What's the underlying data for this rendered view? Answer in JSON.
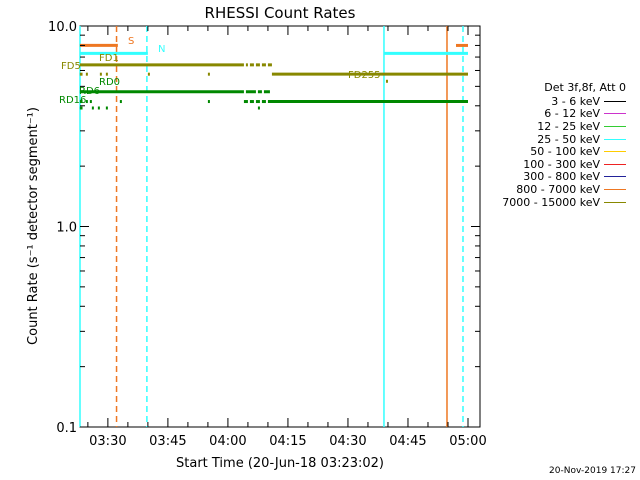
{
  "chart_data": {
    "type": "line",
    "title": "RHESSI Count Rates",
    "xlabel": "Start Time (20-Jun-18 03:23:02)",
    "ylabel": "Count Rate (s⁻¹ detector segment⁻¹)",
    "yscale": "log",
    "ylim": [
      0.1,
      10.0
    ],
    "xlim": [
      "03:23:02",
      "05:03:00"
    ],
    "x_ticks": [
      "03:30",
      "03:45",
      "04:00",
      "04:15",
      "04:30",
      "04:45",
      "05:00"
    ],
    "y_ticks": [
      "0.1",
      "1.0",
      "10.0"
    ],
    "legend": {
      "header": "Det 3f,8f, Att 0",
      "placement": "right",
      "entries": [
        {
          "label": "3 - 6 keV",
          "color": "#000000"
        },
        {
          "label": "6 - 12 keV",
          "color": "#cc33cc"
        },
        {
          "label": "12 - 25 keV",
          "color": "#33cc33"
        },
        {
          "label": "25 - 50 keV",
          "color": "#33ffff"
        },
        {
          "label": "50 - 100 keV",
          "color": "#ffcc00"
        },
        {
          "label": "100 - 300 keV",
          "color": "#ee2222"
        },
        {
          "label": "300 - 800 keV",
          "color": "#222299"
        },
        {
          "label": "800 - 7000 keV",
          "color": "#ee7722"
        },
        {
          "label": "7000 - 15000 keV",
          "color": "#888800"
        }
      ]
    },
    "flags": [
      {
        "label": "S",
        "color": "#ee7722",
        "y": 8.0,
        "segments": [
          [
            "03:23:00",
            "03:32:30"
          ],
          [
            "04:57:00",
            "05:00:00"
          ]
        ]
      },
      {
        "label": "N",
        "color": "#33ffff",
        "y": 7.3,
        "segments": [
          [
            "03:23:00",
            "03:40:00"
          ],
          [
            "04:39:00",
            "05:00:00"
          ]
        ]
      },
      {
        "label": "FD1",
        "color": "#888800",
        "y": 6.4,
        "segments": [
          [
            "03:23:00",
            "04:04:00"
          ],
          [
            "04:04:30",
            "04:05:00"
          ],
          [
            "04:05:30",
            "04:06:30"
          ],
          [
            "04:07:00",
            "04:08:00"
          ],
          [
            "04:08:30",
            "04:09:30"
          ],
          [
            "04:10:00",
            "04:11:00"
          ]
        ]
      },
      {
        "label": "FD5",
        "color": "#888800",
        "y": 5.75,
        "segments": [
          [
            "03:23:00",
            "03:23:40"
          ],
          [
            "03:24:30",
            "03:25:00"
          ],
          [
            "03:28:00",
            "03:28:30"
          ],
          [
            "03:29:30",
            "03:30:00"
          ],
          [
            "03:40:00",
            "03:40:30"
          ],
          [
            "03:55:00",
            "03:55:30"
          ]
        ]
      },
      {
        "label": "FD255",
        "color": "#888800",
        "y": 5.75,
        "segments": [
          [
            "04:11:00",
            "05:00:00"
          ]
        ]
      },
      {
        "label": "FD255-mark",
        "color": "#888800",
        "y": 5.3,
        "segments": [
          [
            "04:39:30",
            "04:40:00"
          ]
        ]
      },
      {
        "label": "RD0",
        "color": "#008800",
        "y": 4.7,
        "segments": [
          [
            "03:23:00",
            "04:04:00"
          ],
          [
            "04:04:30",
            "04:07:00"
          ],
          [
            "04:07:30",
            "04:08:30"
          ],
          [
            "04:09:00",
            "04:10:30"
          ]
        ]
      },
      {
        "label": "RD6",
        "color": "#008800",
        "y": 4.2,
        "segments": [
          [
            "03:23:00",
            "03:23:40"
          ],
          [
            "03:24:30",
            "03:25:00"
          ],
          [
            "03:25:30",
            "03:26:00"
          ],
          [
            "03:33:00",
            "03:33:30"
          ],
          [
            "03:55:00",
            "03:55:30"
          ],
          [
            "04:04:00",
            "04:05:00"
          ],
          [
            "04:05:30",
            "04:06:30"
          ],
          [
            "04:07:00",
            "04:08:00"
          ],
          [
            "04:08:30",
            "04:09:30"
          ],
          [
            "04:10:00",
            "05:00:00"
          ]
        ]
      },
      {
        "label": "RD16",
        "color": "#008800",
        "y": 3.9,
        "segments": [
          [
            "03:23:00",
            "03:23:40"
          ],
          [
            "03:26:00",
            "03:26:30"
          ],
          [
            "03:27:30",
            "03:28:00"
          ],
          [
            "03:29:30",
            "03:30:00"
          ],
          [
            "04:07:30",
            "04:08:00"
          ]
        ]
      }
    ],
    "vlines": [
      {
        "x": "03:23:02",
        "color": "#33ffff",
        "style": "solid"
      },
      {
        "x": "03:39:45",
        "color": "#33ffff",
        "style": "dashed"
      },
      {
        "x": "04:39:00",
        "color": "#33ffff",
        "style": "solid"
      },
      {
        "x": "04:58:45",
        "color": "#33ffff",
        "style": "dashed"
      },
      {
        "x": "03:32:10",
        "color": "#ee7722",
        "style": "dashed"
      },
      {
        "x": "04:54:45",
        "color": "#ee7722",
        "style": "solid"
      }
    ]
  },
  "timestamp": "20-Nov-2019 17:27"
}
